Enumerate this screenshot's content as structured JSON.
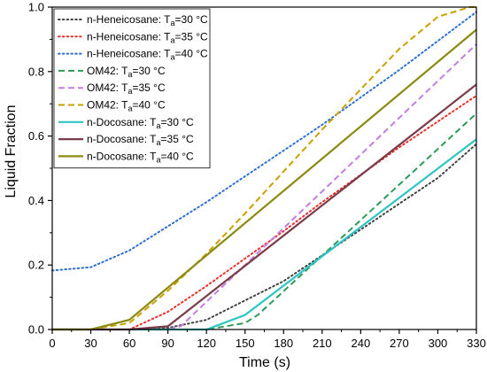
{
  "chart_data": {
    "type": "line",
    "xlabel": "Time (s)",
    "ylabel": "Liquid Fraction",
    "xlim": [
      0,
      330
    ],
    "ylim": [
      0,
      1.0
    ],
    "xticks": [
      0,
      30,
      60,
      90,
      120,
      150,
      180,
      210,
      240,
      270,
      300,
      330
    ],
    "yticks": [
      0.0,
      0.2,
      0.4,
      0.6,
      0.8,
      1.0
    ],
    "xtick_labels": [
      "0",
      "30",
      "60",
      "90",
      "120",
      "150",
      "180",
      "210",
      "240",
      "270",
      "300",
      "330"
    ],
    "ytick_labels": [
      "0.0",
      "0.2",
      "0.4",
      "0.6",
      "0.8",
      "1.0"
    ],
    "grid": false,
    "legend_position": "top-left",
    "series": [
      {
        "name": "n-Heneicosane: T",
        "subscript": "a",
        "suffix": "=30 °C",
        "color": "#444444",
        "dash": "dotted",
        "x": [
          0,
          30,
          60,
          90,
          120,
          150,
          180,
          210,
          240,
          270,
          300,
          330
        ],
        "y": [
          0,
          0,
          0,
          0.005,
          0.03,
          0.09,
          0.15,
          0.23,
          0.31,
          0.39,
          0.47,
          0.575
        ]
      },
      {
        "name": "n-Heneicosane: T",
        "subscript": "a",
        "suffix": "=35 °C",
        "color": "#e8302c",
        "dash": "dotted",
        "x": [
          0,
          30,
          60,
          90,
          120,
          150,
          180,
          210,
          240,
          270,
          300,
          330
        ],
        "y": [
          0,
          0,
          0,
          0.055,
          0.135,
          0.22,
          0.305,
          0.395,
          0.48,
          0.565,
          0.645,
          0.725
        ]
      },
      {
        "name": "n-Heneicosane: T",
        "subscript": "a",
        "suffix": "=40 °C",
        "color": "#2e6fd0",
        "dash": "dotted",
        "x": [
          0,
          30,
          60,
          90,
          120,
          150,
          180,
          210,
          240,
          270,
          300,
          330
        ],
        "y": [
          0.183,
          0.193,
          0.245,
          0.32,
          0.395,
          0.475,
          0.555,
          0.635,
          0.72,
          0.805,
          0.895,
          0.985
        ]
      },
      {
        "name": "OM42: T",
        "subscript": "a",
        "suffix": "=30 °C",
        "color": "#2e9a5a",
        "dash": "dashed",
        "x": [
          0,
          30,
          60,
          90,
          120,
          150,
          160,
          330
        ],
        "y": [
          0,
          0,
          0,
          0,
          0,
          0.02,
          0.045,
          0.67
        ]
      },
      {
        "name": "OM42: T",
        "subscript": "a",
        "suffix": "=35 °C",
        "color": "#c27ee0",
        "dash": "dashed",
        "x": [
          0,
          30,
          60,
          90,
          100,
          330
        ],
        "y": [
          0,
          0,
          0,
          0,
          0.01,
          0.885
        ]
      },
      {
        "name": "OM42: T",
        "subscript": "a",
        "suffix": "=40 °C",
        "color": "#c9a000",
        "dash": "dashed",
        "x": [
          0,
          30,
          60,
          90,
          120,
          150,
          180,
          210,
          240,
          270,
          300,
          325,
          330
        ],
        "y": [
          0,
          0,
          0.02,
          0.12,
          0.235,
          0.36,
          0.49,
          0.62,
          0.745,
          0.87,
          0.97,
          1.0,
          1.0
        ]
      },
      {
        "name": "n-Docosane: T",
        "subscript": "a",
        "suffix": "=30 °C",
        "color": "#2ec4c4",
        "dash": "solid",
        "x": [
          0,
          30,
          60,
          90,
          120,
          150,
          330
        ],
        "y": [
          0,
          0,
          0,
          0,
          0,
          0.045,
          0.59
        ]
      },
      {
        "name": "n-Docosane: T",
        "subscript": "a",
        "suffix": "=35 °C",
        "color": "#7a3b4a",
        "dash": "solid",
        "x": [
          0,
          30,
          60,
          90,
          330
        ],
        "y": [
          0,
          0,
          0,
          0.01,
          0.76
        ]
      },
      {
        "name": "n-Docosane: T",
        "subscript": "a",
        "suffix": "=40 °C",
        "color": "#8a8a10",
        "dash": "solid",
        "x": [
          0,
          30,
          60,
          330
        ],
        "y": [
          0,
          0,
          0.03,
          0.93
        ]
      }
    ]
  }
}
